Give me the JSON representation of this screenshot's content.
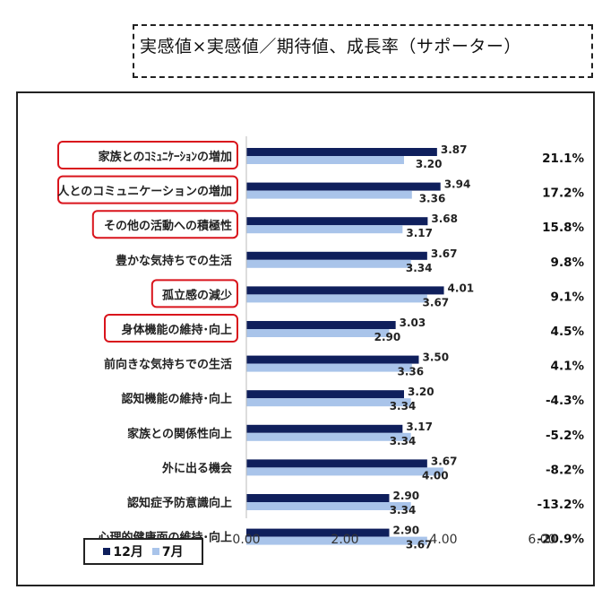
{
  "header": {
    "title": "実感値×実感値／期待値、成長率（サポーター）"
  },
  "colors": {
    "series_dec": "#0f1f5c",
    "series_jul": "#a9c4ea",
    "highlight": "#d9141c"
  },
  "chart_data": {
    "type": "bar",
    "orientation": "horizontal",
    "categories": [
      "家族とのｺﾐｭﾆｹｰｼｮﾝの増加",
      "人とのコミュニケーションの増加",
      "その他の活動への積極性",
      "豊かな気持ちでの生活",
      "孤立感の減少",
      "身体機能の維持･向上",
      "前向きな気持ちでの生活",
      "認知機能の維持･向上",
      "家族との関係性向上",
      "外に出る機会",
      "認知症予防意識向上",
      "心理的健康面の維持･向上"
    ],
    "series": [
      {
        "name": "12月",
        "values": [
          3.87,
          3.94,
          3.68,
          3.67,
          4.01,
          3.03,
          3.5,
          3.2,
          3.17,
          3.67,
          2.9,
          2.9
        ]
      },
      {
        "name": "7月",
        "values": [
          3.2,
          3.36,
          3.17,
          3.34,
          3.67,
          2.9,
          3.36,
          3.34,
          3.34,
          4.0,
          3.34,
          3.67
        ]
      }
    ],
    "value_labels": {
      "12月": [
        "3.87",
        "3.94",
        "3.68",
        "3.67",
        "4.01",
        "3.03",
        "3.50",
        "3.20",
        "3.17",
        "3.67",
        "2.90",
        "2.90"
      ],
      "7月": [
        "3.20",
        "3.36",
        "3.17",
        "3.34",
        "3.67",
        "2.90",
        "3.36",
        "3.34",
        "3.34",
        "4.00",
        "3.34",
        "3.67"
      ]
    },
    "growth_rates": [
      "21.1%",
      "17.2%",
      "15.8%",
      "9.8%",
      "9.1%",
      "4.5%",
      "4.1%",
      "-4.3%",
      "-5.2%",
      "-8.2%",
      "-13.2%",
      "-20.9%"
    ],
    "highlighted": [
      true,
      true,
      true,
      false,
      true,
      true,
      false,
      false,
      false,
      false,
      false,
      false
    ],
    "xlim": [
      0,
      6
    ],
    "xticks": [
      "0.00",
      "2.00",
      "4.00",
      "6.00"
    ],
    "legend": {
      "position": "bottom-left",
      "items": [
        "12月",
        "7月"
      ]
    },
    "grid": false
  }
}
